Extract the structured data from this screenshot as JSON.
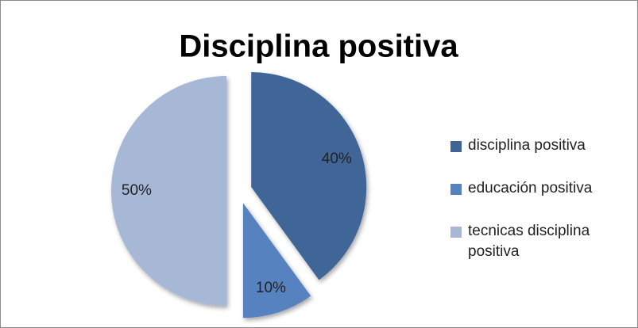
{
  "chart_data": {
    "type": "pie",
    "title": "Disciplina positiva",
    "categories": [
      "disciplina positiva",
      "educación positiva",
      "tecnicas disciplina positiva"
    ],
    "values": [
      40,
      10,
      50
    ],
    "value_labels": [
      "40%",
      "10%",
      "50%"
    ],
    "colors": [
      "#3f6597",
      "#5682c0",
      "#a7b7d6"
    ],
    "legend": "right"
  }
}
